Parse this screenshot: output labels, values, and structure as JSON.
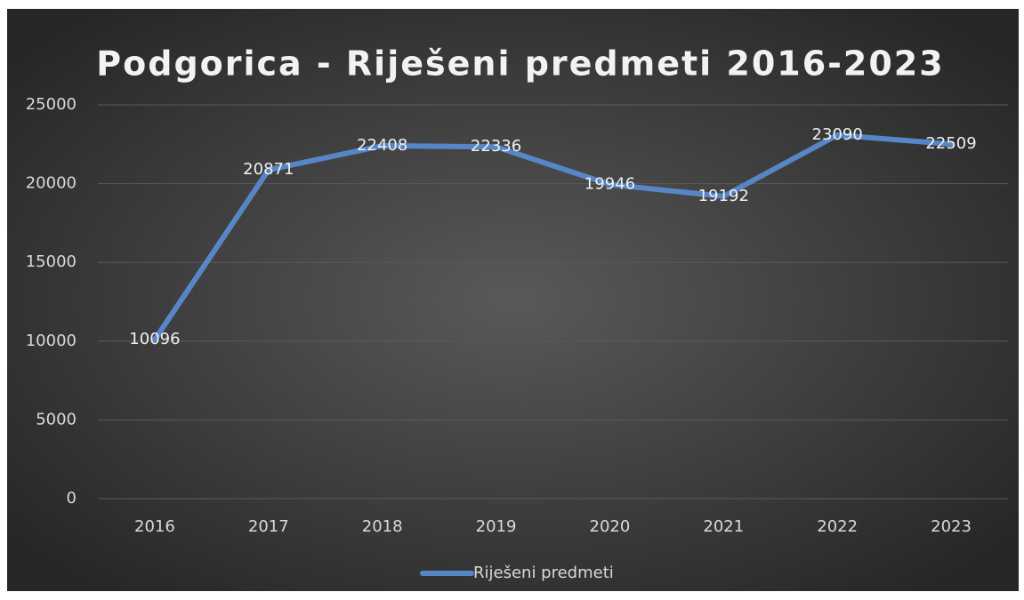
{
  "chart_data": {
    "type": "line",
    "title": "Podgorica - Riješeni predmeti 2016-2023",
    "categories": [
      "2016",
      "2017",
      "2018",
      "2019",
      "2020",
      "2021",
      "2022",
      "2023"
    ],
    "series": [
      {
        "name": "Riješeni predmeti",
        "color": "#5686c6",
        "values": [
          10096,
          20871,
          22408,
          22336,
          19946,
          19192,
          23090,
          22509
        ]
      }
    ],
    "ylim": [
      0,
      25000
    ],
    "yticks": [
      0,
      5000,
      10000,
      15000,
      20000,
      25000
    ],
    "grid": true,
    "legend": "bottom",
    "data_labels": true
  }
}
